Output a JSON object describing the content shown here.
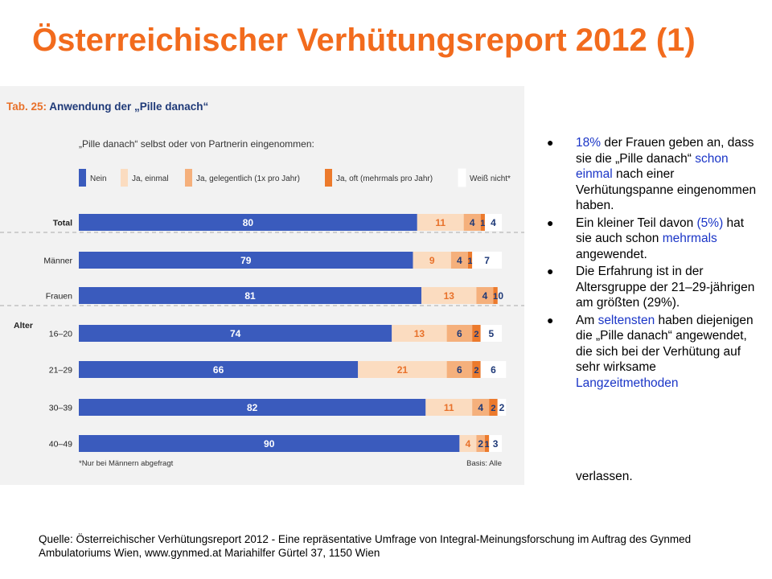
{
  "title": "Österreichischer Verhütungsreport 2012 (1)",
  "chart_data": {
    "type": "bar",
    "orientation": "horizontal",
    "stacked": true,
    "title": "Tab. 25: Anwendung der „Pille danach“",
    "subtitle": "„Pille danach“ selbst oder von Partnerin eingenommen:",
    "categories": [
      "Total",
      "Männer",
      "Frauen",
      "16–20",
      "21–29",
      "30–39",
      "40–49"
    ],
    "group_label": "Alter",
    "series": [
      {
        "name": "Nein",
        "color": "#3a5bbd",
        "values": [
          80,
          79,
          81,
          74,
          66,
          82,
          90
        ]
      },
      {
        "name": "Ja, einmal",
        "color": "#fbdcc0",
        "values": [
          11,
          9,
          13,
          13,
          21,
          11,
          4
        ]
      },
      {
        "name": "Ja, gelegentlich (1x pro Jahr)",
        "color": "#f5b07c",
        "values": [
          4,
          4,
          4,
          6,
          6,
          4,
          2
        ]
      },
      {
        "name": "Ja, oft (mehrmals pro Jahr)",
        "color": "#ec7a2c",
        "values": [
          1,
          1,
          1,
          2,
          2,
          2,
          1
        ]
      },
      {
        "name": "Weiß nicht*",
        "color": "#ffffff",
        "values": [
          4,
          7,
          0,
          5,
          6,
          2,
          3
        ]
      }
    ],
    "footnote": "*Nur bei Männern abgefragt",
    "basis": "Basis: Alle"
  },
  "bullets": [
    [
      {
        "t": "18%",
        "c": "blue"
      },
      {
        "t": " der Frauen geben an, dass sie die „Pille danach“ "
      },
      {
        "t": "schon einmal",
        "c": "blue"
      },
      {
        "t": " nach einer Verhütungspanne eingenommen haben."
      }
    ],
    [
      {
        "t": "Ein kleiner Teil davon "
      },
      {
        "t": "(5%)",
        "c": "blue"
      },
      {
        "t": " hat sie auch schon "
      },
      {
        "t": "mehrmals",
        "c": "blue"
      },
      {
        "t": " angewendet."
      }
    ],
    [
      {
        "t": "Die Erfahrung ist in der Altersgruppe der 21–29-jährigen am größten (29%)."
      }
    ],
    [
      {
        "t": "Am "
      },
      {
        "t": "seltensten",
        "c": "blue"
      },
      {
        "t": " haben diejenigen die „Pille danach“ angewendet, die sich bei der Verhütung auf sehr wirksame "
      },
      {
        "t": "Langzeitmethoden",
        "c": "blue"
      }
    ]
  ],
  "bullet_tail": "verlassen.",
  "source": "Quelle: Österreichischer Verhütungsreport 2012 - Eine repräsentative Umfrage von Integral-Meinungsforschung im Auftrag des Gynmed Ambulatoriums Wien, www.gynmed.at Mariahilfer Gürtel 37, 1150 Wien"
}
